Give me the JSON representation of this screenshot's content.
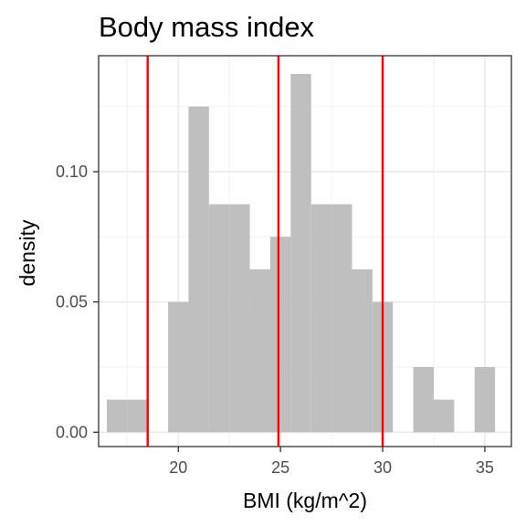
{
  "chart_data": {
    "type": "bar",
    "title": "Body mass index",
    "xlabel": "BMI (kg/m^2)",
    "ylabel": "density",
    "xlim": [
      16.1,
      36.3
    ],
    "ylim": [
      -0.0055,
      0.1445
    ],
    "x_ticks": [
      20,
      25,
      30,
      35
    ],
    "x_tick_labels": [
      "20",
      "25",
      "30",
      "35"
    ],
    "y_ticks": [
      0.0,
      0.05,
      0.1
    ],
    "y_tick_labels": [
      "0.00",
      "0.05",
      "0.10"
    ],
    "bin_width": 1,
    "bins": [
      {
        "x0": 16.5,
        "x1": 17.5,
        "density": 0.0125
      },
      {
        "x0": 17.5,
        "x1": 18.5,
        "density": 0.0125
      },
      {
        "x0": 18.5,
        "x1": 19.5,
        "density": 0.0
      },
      {
        "x0": 19.5,
        "x1": 20.5,
        "density": 0.05
      },
      {
        "x0": 20.5,
        "x1": 21.5,
        "density": 0.125
      },
      {
        "x0": 21.5,
        "x1": 22.5,
        "density": 0.0875
      },
      {
        "x0": 22.5,
        "x1": 23.5,
        "density": 0.0875
      },
      {
        "x0": 23.5,
        "x1": 24.5,
        "density": 0.0625
      },
      {
        "x0": 24.5,
        "x1": 25.5,
        "density": 0.075
      },
      {
        "x0": 25.5,
        "x1": 26.5,
        "density": 0.1375
      },
      {
        "x0": 26.5,
        "x1": 27.5,
        "density": 0.0875
      },
      {
        "x0": 27.5,
        "x1": 28.5,
        "density": 0.0875
      },
      {
        "x0": 28.5,
        "x1": 29.5,
        "density": 0.0625
      },
      {
        "x0": 29.5,
        "x1": 30.5,
        "density": 0.05
      },
      {
        "x0": 30.5,
        "x1": 31.5,
        "density": 0.0
      },
      {
        "x0": 31.5,
        "x1": 32.5,
        "density": 0.025
      },
      {
        "x0": 32.5,
        "x1": 33.5,
        "density": 0.0125
      },
      {
        "x0": 33.5,
        "x1": 34.5,
        "density": 0.0
      },
      {
        "x0": 34.5,
        "x1": 35.5,
        "density": 0.025
      }
    ],
    "vlines": [
      18.5,
      24.9,
      30.0
    ],
    "bar_color": "#bfbfbf",
    "vline_color": "#ff0000",
    "grid": true,
    "legend": "none"
  }
}
